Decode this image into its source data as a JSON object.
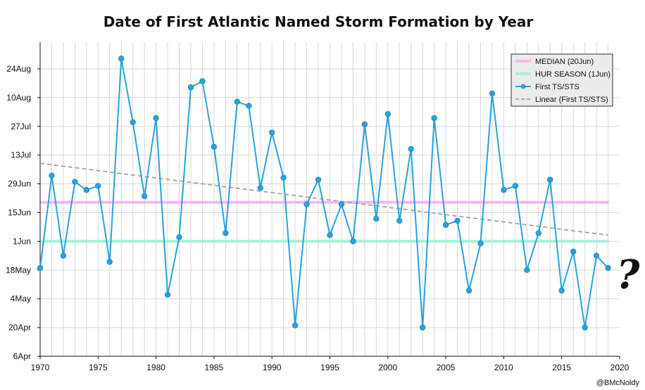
{
  "chart_data": {
    "type": "line",
    "title": "Date of First Atlantic Named Storm Formation by Year",
    "xlim": [
      1970,
      2020
    ],
    "x_ticks": [
      1970,
      1975,
      1980,
      1985,
      1990,
      1995,
      2000,
      2005,
      2010,
      2015,
      2020
    ],
    "y_ticks": [
      {
        "value": "2020-04-06",
        "label": "6Apr"
      },
      {
        "value": "2020-04-20",
        "label": "20Apr"
      },
      {
        "value": "2020-05-04",
        "label": "4May"
      },
      {
        "value": "2020-05-18",
        "label": "18May"
      },
      {
        "value": "2020-06-01",
        "label": "1Jun"
      },
      {
        "value": "2020-06-15",
        "label": "15Jun"
      },
      {
        "value": "2020-06-29",
        "label": "29Jun"
      },
      {
        "value": "2020-07-13",
        "label": "13Jul"
      },
      {
        "value": "2020-07-27",
        "label": "27Jul"
      },
      {
        "value": "2020-08-10",
        "label": "10Aug"
      },
      {
        "value": "2020-08-24",
        "label": "24Aug"
      }
    ],
    "ylim": [
      "2020-04-06",
      "2020-09-06"
    ],
    "grid": true,
    "legend_position": "top-right",
    "series": [
      {
        "name": "First TS/STS",
        "color": "#29a3dc",
        "x": [
          1970,
          1971,
          1972,
          1973,
          1974,
          1975,
          1976,
          1977,
          1978,
          1979,
          1980,
          1981,
          1982,
          1983,
          1984,
          1985,
          1986,
          1987,
          1988,
          1989,
          1990,
          1991,
          1992,
          1993,
          1994,
          1995,
          1996,
          1997,
          1998,
          1999,
          2000,
          2001,
          2002,
          2003,
          2004,
          2005,
          2006,
          2007,
          2008,
          2009,
          2010,
          2011,
          2012,
          2013,
          2014,
          2015,
          2016,
          2017,
          2018,
          2019
        ],
        "y": [
          "2020-05-19",
          "2020-07-03",
          "2020-05-25",
          "2020-06-30",
          "2020-06-26",
          "2020-06-28",
          "2020-05-22",
          "2020-08-29",
          "2020-07-29",
          "2020-06-23",
          "2020-07-31",
          "2020-05-06",
          "2020-06-03",
          "2020-08-15",
          "2020-08-18",
          "2020-07-17",
          "2020-06-05",
          "2020-08-08",
          "2020-08-06",
          "2020-06-27",
          "2020-07-24",
          "2020-07-02",
          "2020-04-21",
          "2020-06-19",
          "2020-07-01",
          "2020-06-04",
          "2020-06-19",
          "2020-06-01",
          "2020-07-28",
          "2020-06-12",
          "2020-08-02",
          "2020-06-11",
          "2020-07-16",
          "2020-04-20",
          "2020-07-31",
          "2020-06-09",
          "2020-06-11",
          "2020-05-08",
          "2020-05-31",
          "2020-08-12",
          "2020-06-26",
          "2020-06-28",
          "2020-05-18",
          "2020-06-05",
          "2020-07-01",
          "2020-05-08",
          "2020-05-27",
          "2020-04-20",
          "2020-05-25",
          "2020-05-19"
        ]
      }
    ],
    "reference_lines": [
      {
        "name": "MEDIAN (20Jun)",
        "value": "2020-06-20",
        "color": "#f5b8f0"
      },
      {
        "name": "HUR SEASON (1Jun)",
        "value": "2020-06-01",
        "color": "#a8f0d8"
      }
    ],
    "trendline": {
      "name": "Linear (First TS/STS)",
      "color": "#aaaaaa",
      "x": [
        1970,
        2019
      ],
      "y": [
        "2020-07-09",
        "2020-06-04"
      ]
    },
    "annotation": "?",
    "credit": "@BMcNoldy"
  }
}
